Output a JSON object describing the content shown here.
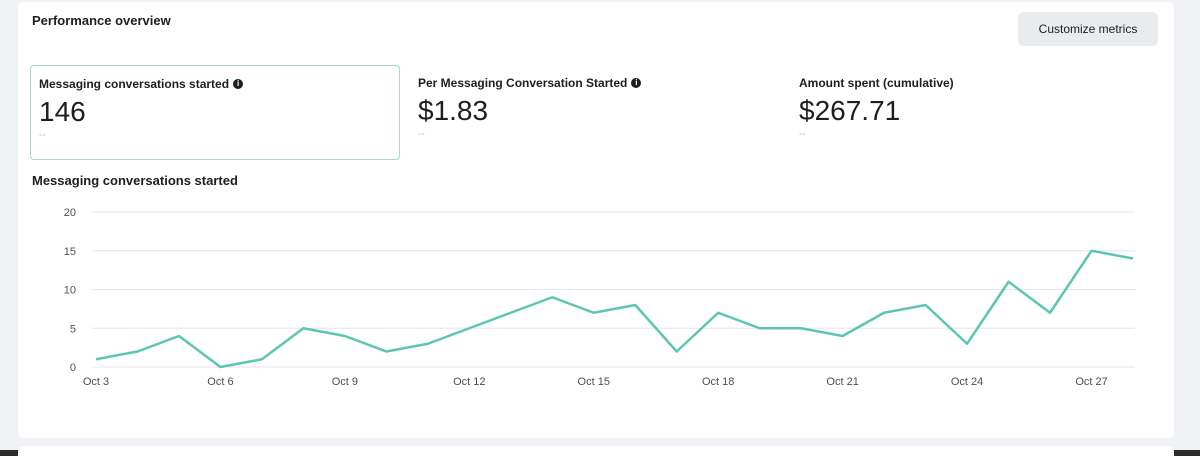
{
  "header": {
    "title": "Performance overview",
    "customize_label": "Customize metrics"
  },
  "metrics": [
    {
      "label": "Messaging conversations started",
      "value": "146",
      "compare": "--",
      "info": true,
      "selected": true
    },
    {
      "label": "Per Messaging Conversation Started",
      "value": "$1.83",
      "compare": "--",
      "info": true,
      "selected": false
    },
    {
      "label": "Amount spent (cumulative)",
      "value": "$267.71",
      "compare": "--",
      "info": false,
      "selected": false
    }
  ],
  "colors": {
    "line": "#5cc6b1",
    "grid": "#e4e6eb",
    "selected_border": "#a7d8cf"
  },
  "chart_data": {
    "type": "line",
    "title": "Messaging conversations started",
    "xlabel": "",
    "ylabel": "",
    "x": [
      "Oct 3",
      "Oct 4",
      "Oct 5",
      "Oct 6",
      "Oct 7",
      "Oct 8",
      "Oct 9",
      "Oct 10",
      "Oct 11",
      "Oct 12",
      "Oct 13",
      "Oct 14",
      "Oct 15",
      "Oct 16",
      "Oct 17",
      "Oct 18",
      "Oct 19",
      "Oct 20",
      "Oct 21",
      "Oct 22",
      "Oct 23",
      "Oct 24",
      "Oct 25",
      "Oct 26",
      "Oct 27",
      "Oct 28"
    ],
    "x_tick_labels": [
      "Oct 3",
      "Oct 6",
      "Oct 9",
      "Oct 12",
      "Oct 15",
      "Oct 18",
      "Oct 21",
      "Oct 24",
      "Oct 27"
    ],
    "series": [
      {
        "values": [
          1,
          2,
          4,
          0,
          1,
          5,
          4,
          2,
          3,
          5,
          7,
          9,
          7,
          8,
          2,
          7,
          5,
          5,
          4,
          7,
          8,
          3,
          11,
          7,
          15,
          14
        ]
      }
    ],
    "yticks": [
      0,
      5,
      10,
      15,
      20
    ],
    "ylim": [
      0,
      20
    ],
    "grid": true
  }
}
